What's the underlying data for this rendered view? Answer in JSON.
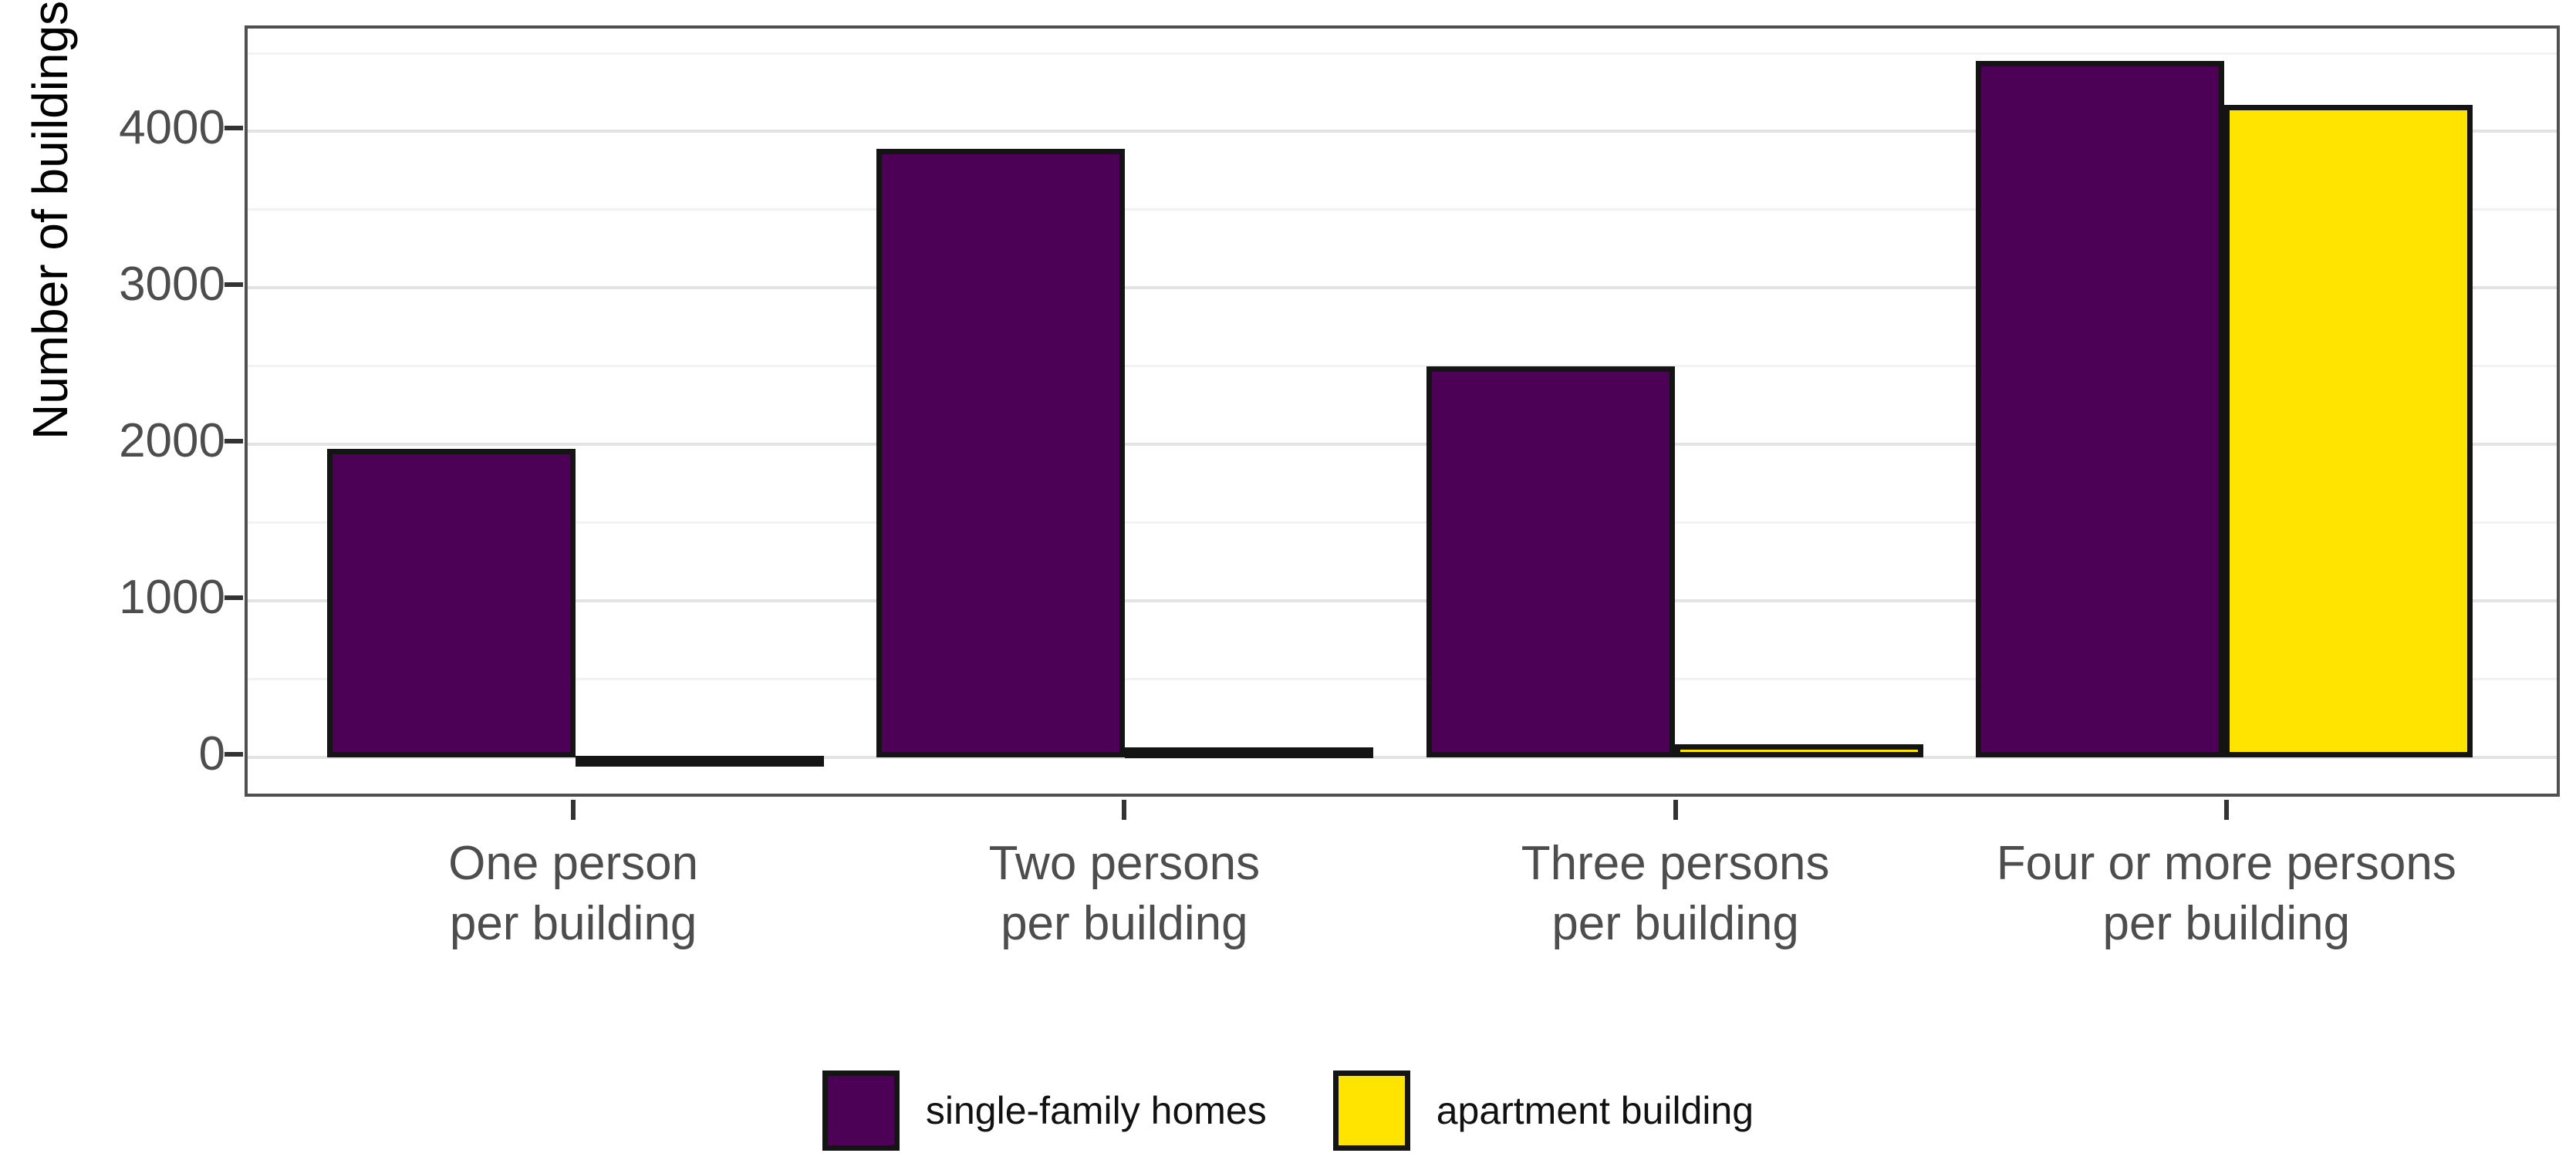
{
  "chart_data": {
    "type": "bar",
    "title": "",
    "xlabel": "",
    "ylabel": "Number of buildings",
    "categories": [
      "One person\nper building",
      "Two persons\nper building",
      "Three persons\nper building",
      "Four or more persons\nper building"
    ],
    "series": [
      {
        "name": "single-family homes",
        "color": "#4c0157",
        "values": [
          1970,
          3890,
          2500,
          4450
        ]
      },
      {
        "name": "apartment building",
        "color": "#ffe400",
        "values": [
          8,
          65,
          85,
          4170
        ]
      }
    ],
    "ylim": [
      0,
      4500
    ],
    "yticks": [
      0,
      1000,
      2000,
      3000,
      4000
    ],
    "yticks_minor": [
      500,
      1500,
      2500,
      3500,
      4500
    ],
    "grid": "major+minor horizontal, light gray on white",
    "legend_position": "bottom",
    "bar_outline_color": "#141414",
    "axis_text_color": "#4d4d4d",
    "panel_border_color": "#4f4f4f"
  }
}
